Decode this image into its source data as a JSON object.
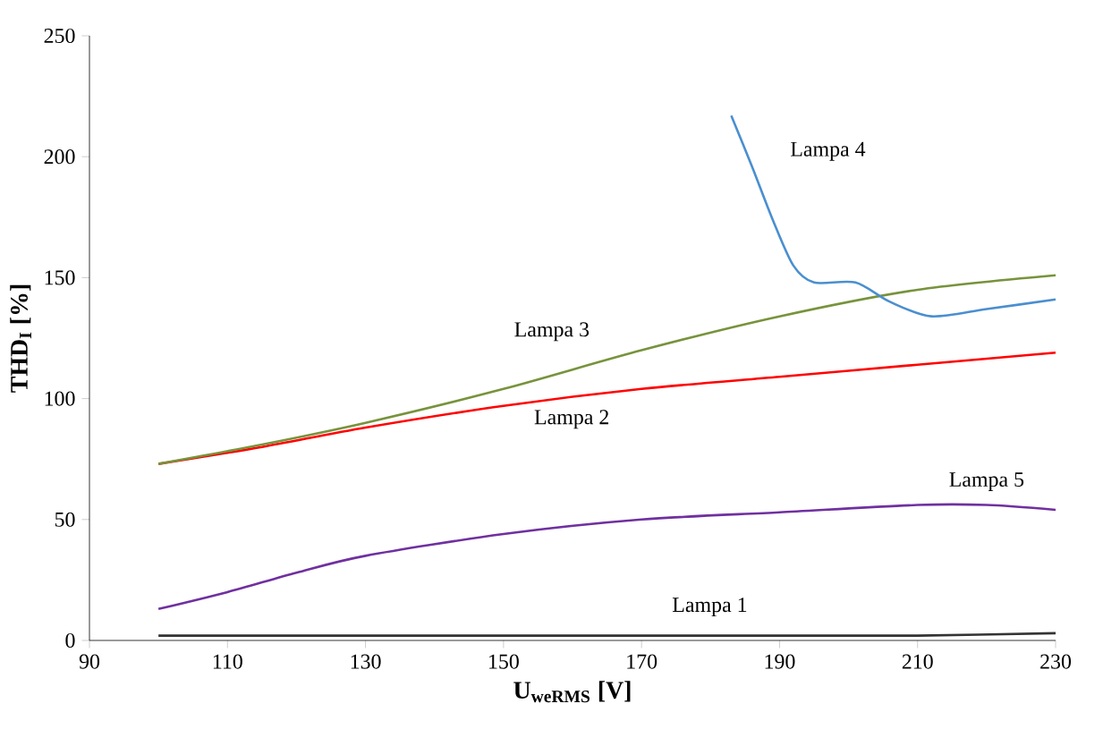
{
  "chart_data": {
    "type": "line",
    "xlabel": "U$_{weRMS}$ [V]",
    "ylabel": "THD$_{I}$ [%]",
    "xlim": [
      90,
      230
    ],
    "xticks": [
      90,
      110,
      130,
      150,
      170,
      190,
      210,
      230
    ],
    "ylim": [
      0,
      250
    ],
    "yticks": [
      0,
      50,
      100,
      150,
      200,
      250
    ],
    "grid": false,
    "marker": "none",
    "line_style": "solid",
    "series": [
      {
        "name": "Lampa 1",
        "color": "#333333",
        "x": [
          100,
          130,
          160,
          190,
          210,
          230
        ],
        "values": [
          2,
          2,
          2,
          2,
          2,
          3
        ]
      },
      {
        "name": "Lampa 2",
        "color": "#ff0000",
        "x": [
          100,
          115,
          130,
          150,
          170,
          190,
          210,
          230
        ],
        "values": [
          73,
          80,
          88,
          97,
          104,
          109,
          114,
          119
        ]
      },
      {
        "name": "Lampa 3",
        "color": "#77933c",
        "x": [
          100,
          115,
          130,
          150,
          170,
          190,
          210,
          230
        ],
        "values": [
          73,
          81,
          90,
          104,
          120,
          134,
          145,
          151
        ]
      },
      {
        "name": "Lampa 4",
        "color": "#4a8fcf",
        "x": [
          183,
          186,
          189,
          192,
          195,
          201,
          206,
          212,
          220,
          230
        ],
        "values": [
          217,
          196,
          174,
          155,
          148,
          148,
          140,
          134,
          137,
          141
        ]
      },
      {
        "name": "Lampa 5",
        "color": "#7030a0",
        "x": [
          100,
          110,
          120,
          130,
          150,
          170,
          190,
          210,
          220,
          230
        ],
        "values": [
          13,
          20,
          28,
          35,
          44,
          50,
          53,
          56,
          56,
          54
        ]
      }
    ]
  }
}
